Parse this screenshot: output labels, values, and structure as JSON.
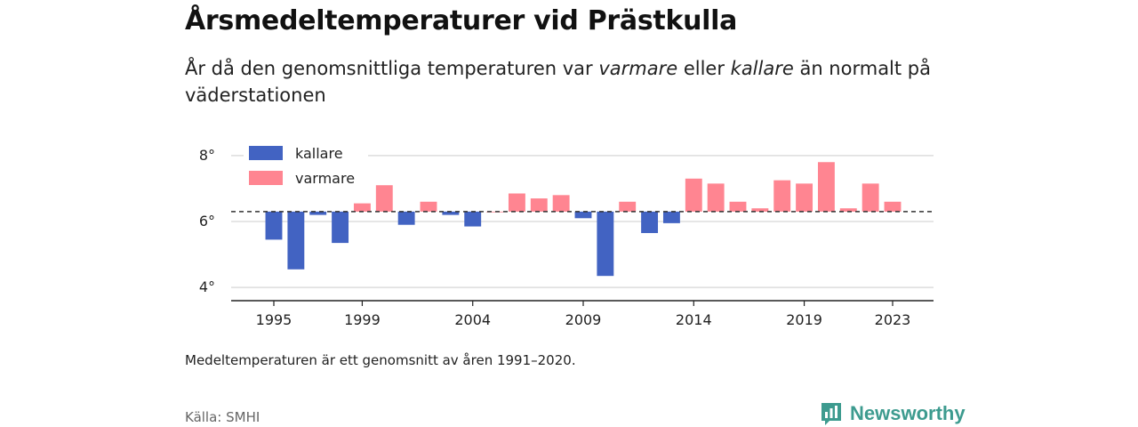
{
  "title": "Årsmedeltemperaturer vid Prästkulla",
  "subtitle": {
    "part1": "År då den genomsnittliga temperaturen var ",
    "warm_word": "varmare",
    "part2": " eller ",
    "cold_word": "kallare",
    "part3": " än normalt på väderstationen"
  },
  "note": "Medeltemperaturen är ett genomsnitt av åren 1991–2020.",
  "source": "Källa: SMHI",
  "brand": {
    "name": "Newsworthy",
    "icon": "newsworthy-logo-icon",
    "color": "#3d9b8f"
  },
  "colors": {
    "colder": "#4263c2",
    "warmer": "#ff8591",
    "grid": "#dddddd",
    "axis": "#222222",
    "reference": "#333333"
  },
  "chart_data": {
    "type": "bar",
    "reference_line": 6.3,
    "reference_style": "dashed",
    "ylim": [
      3.6,
      8.4
    ],
    "yticks": [
      4,
      6,
      8
    ],
    "ytick_labels": [
      "4°",
      "6°",
      "8°"
    ],
    "xticks": [
      1995,
      1999,
      2004,
      2009,
      2014,
      2019,
      2023
    ],
    "xtick_labels": [
      "1995",
      "1999",
      "2004",
      "2009",
      "2014",
      "2019",
      "2023"
    ],
    "grid": "horizontal",
    "legend_position": "top-left",
    "series": [
      {
        "name": "kallare",
        "color": "#4263c2"
      },
      {
        "name": "varmare",
        "color": "#ff8591"
      }
    ],
    "categories": [
      1995,
      1996,
      1997,
      1998,
      1999,
      2000,
      2001,
      2002,
      2003,
      2004,
      2005,
      2006,
      2007,
      2008,
      2009,
      2010,
      2011,
      2012,
      2013,
      2014,
      2015,
      2016,
      2017,
      2018,
      2019,
      2020,
      2021,
      2022,
      2023
    ],
    "values": [
      5.45,
      4.55,
      6.2,
      5.35,
      6.55,
      7.1,
      5.9,
      6.6,
      6.2,
      5.85,
      6.3,
      6.85,
      6.7,
      6.8,
      6.1,
      4.35,
      6.6,
      5.65,
      5.95,
      7.3,
      7.15,
      6.6,
      6.4,
      7.25,
      7.15,
      7.8,
      6.4,
      7.15,
      6.6
    ]
  }
}
